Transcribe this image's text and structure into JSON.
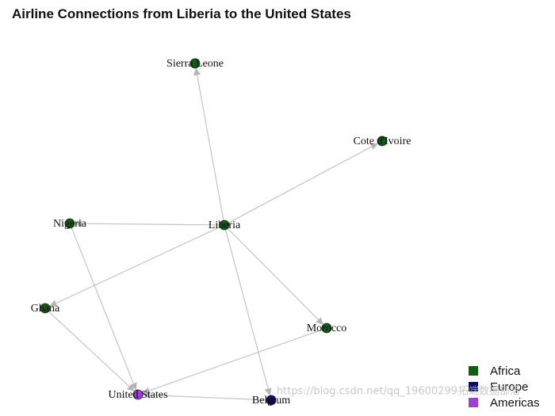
{
  "title": "Airline Connections from Liberia to the United States",
  "nodes": [
    {
      "label": "Sierra Leone"
    },
    {
      "label": "Cote d'Ivoire"
    },
    {
      "label": "Nigeria"
    },
    {
      "label": "Liberia"
    },
    {
      "label": "Ghana"
    },
    {
      "label": "Morocco"
    },
    {
      "label": "United States"
    },
    {
      "label": "Belgium"
    }
  ],
  "legend": [
    {
      "label": "Africa",
      "color": "#135c13"
    },
    {
      "label": "Europe",
      "color": "#0b0b6b"
    },
    {
      "label": "Americas",
      "color": "#9a3fd8"
    }
  ],
  "watermark": {
    "brand": "拓端数据部落",
    "url": "https://blog.csdn.net/qq_19600299"
  }
}
